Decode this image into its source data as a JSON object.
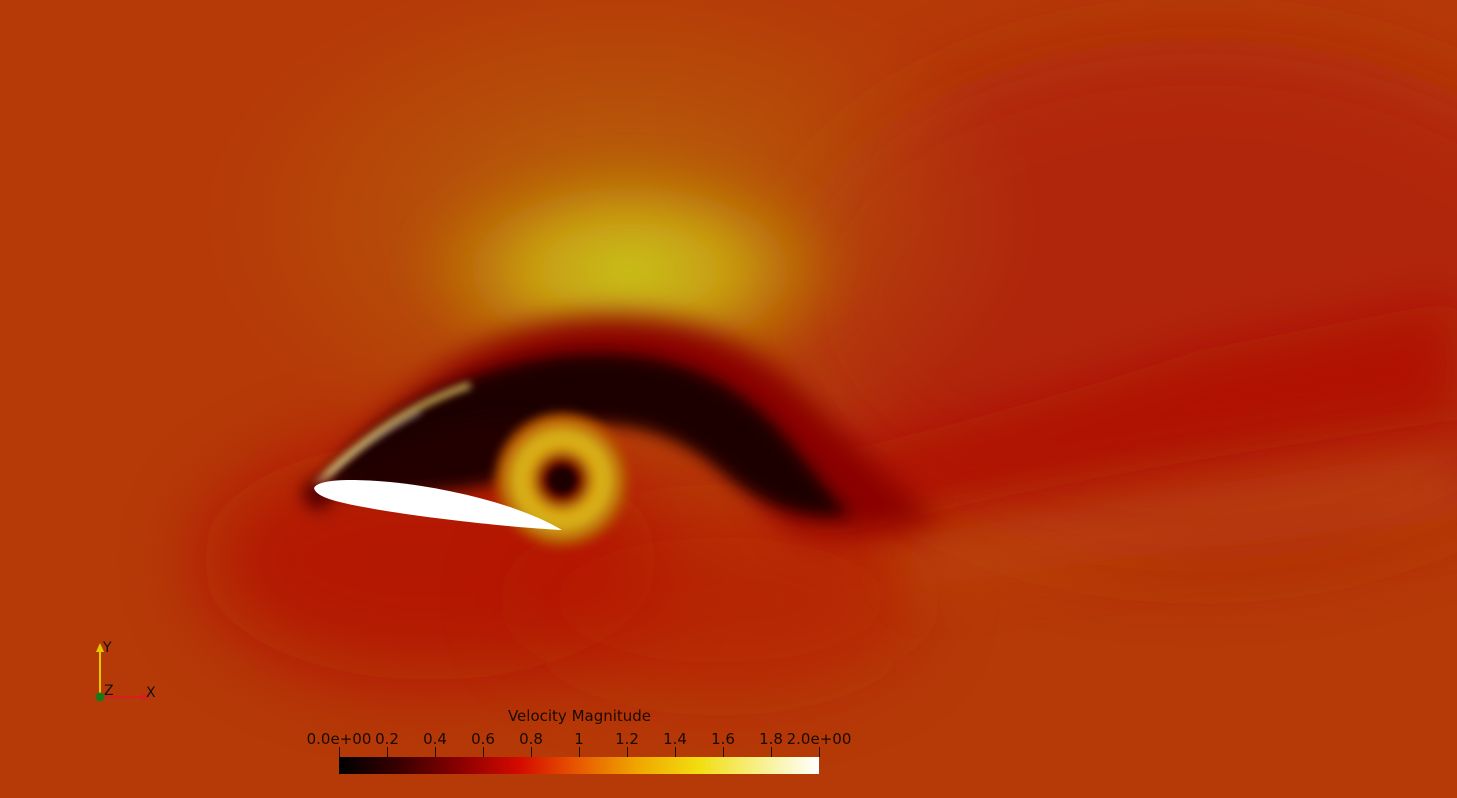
{
  "scalar_bar": {
    "title": "Velocity Magnitude",
    "range": [
      0,
      2
    ],
    "ticks": [
      {
        "value": 0.0,
        "label": "0.0e+00"
      },
      {
        "value": 0.2,
        "label": "0.2"
      },
      {
        "value": 0.4,
        "label": "0.4"
      },
      {
        "value": 0.6,
        "label": "0.6"
      },
      {
        "value": 0.8,
        "label": "0.8"
      },
      {
        "value": 1.0,
        "label": "1"
      },
      {
        "value": 1.2,
        "label": "1.2"
      },
      {
        "value": 1.4,
        "label": "1.4"
      },
      {
        "value": 1.6,
        "label": "1.6"
      },
      {
        "value": 1.8,
        "label": "1.8"
      },
      {
        "value": 2.0,
        "label": "2.0e+00"
      }
    ],
    "colormap": [
      "#000000",
      "#3a0000",
      "#8a0000",
      "#d40a00",
      "#e85a00",
      "#f0a800",
      "#f2dd10",
      "#f7f08a",
      "#ffffff"
    ]
  },
  "axes": {
    "x_label": "X",
    "y_label": "Y",
    "z_label": "Z",
    "x_color": "#d42020",
    "y_color": "#e6c800",
    "z_color": "#1a7a1a"
  },
  "colors": {
    "background": "#b53a08",
    "airfoil": "#ffffff"
  }
}
